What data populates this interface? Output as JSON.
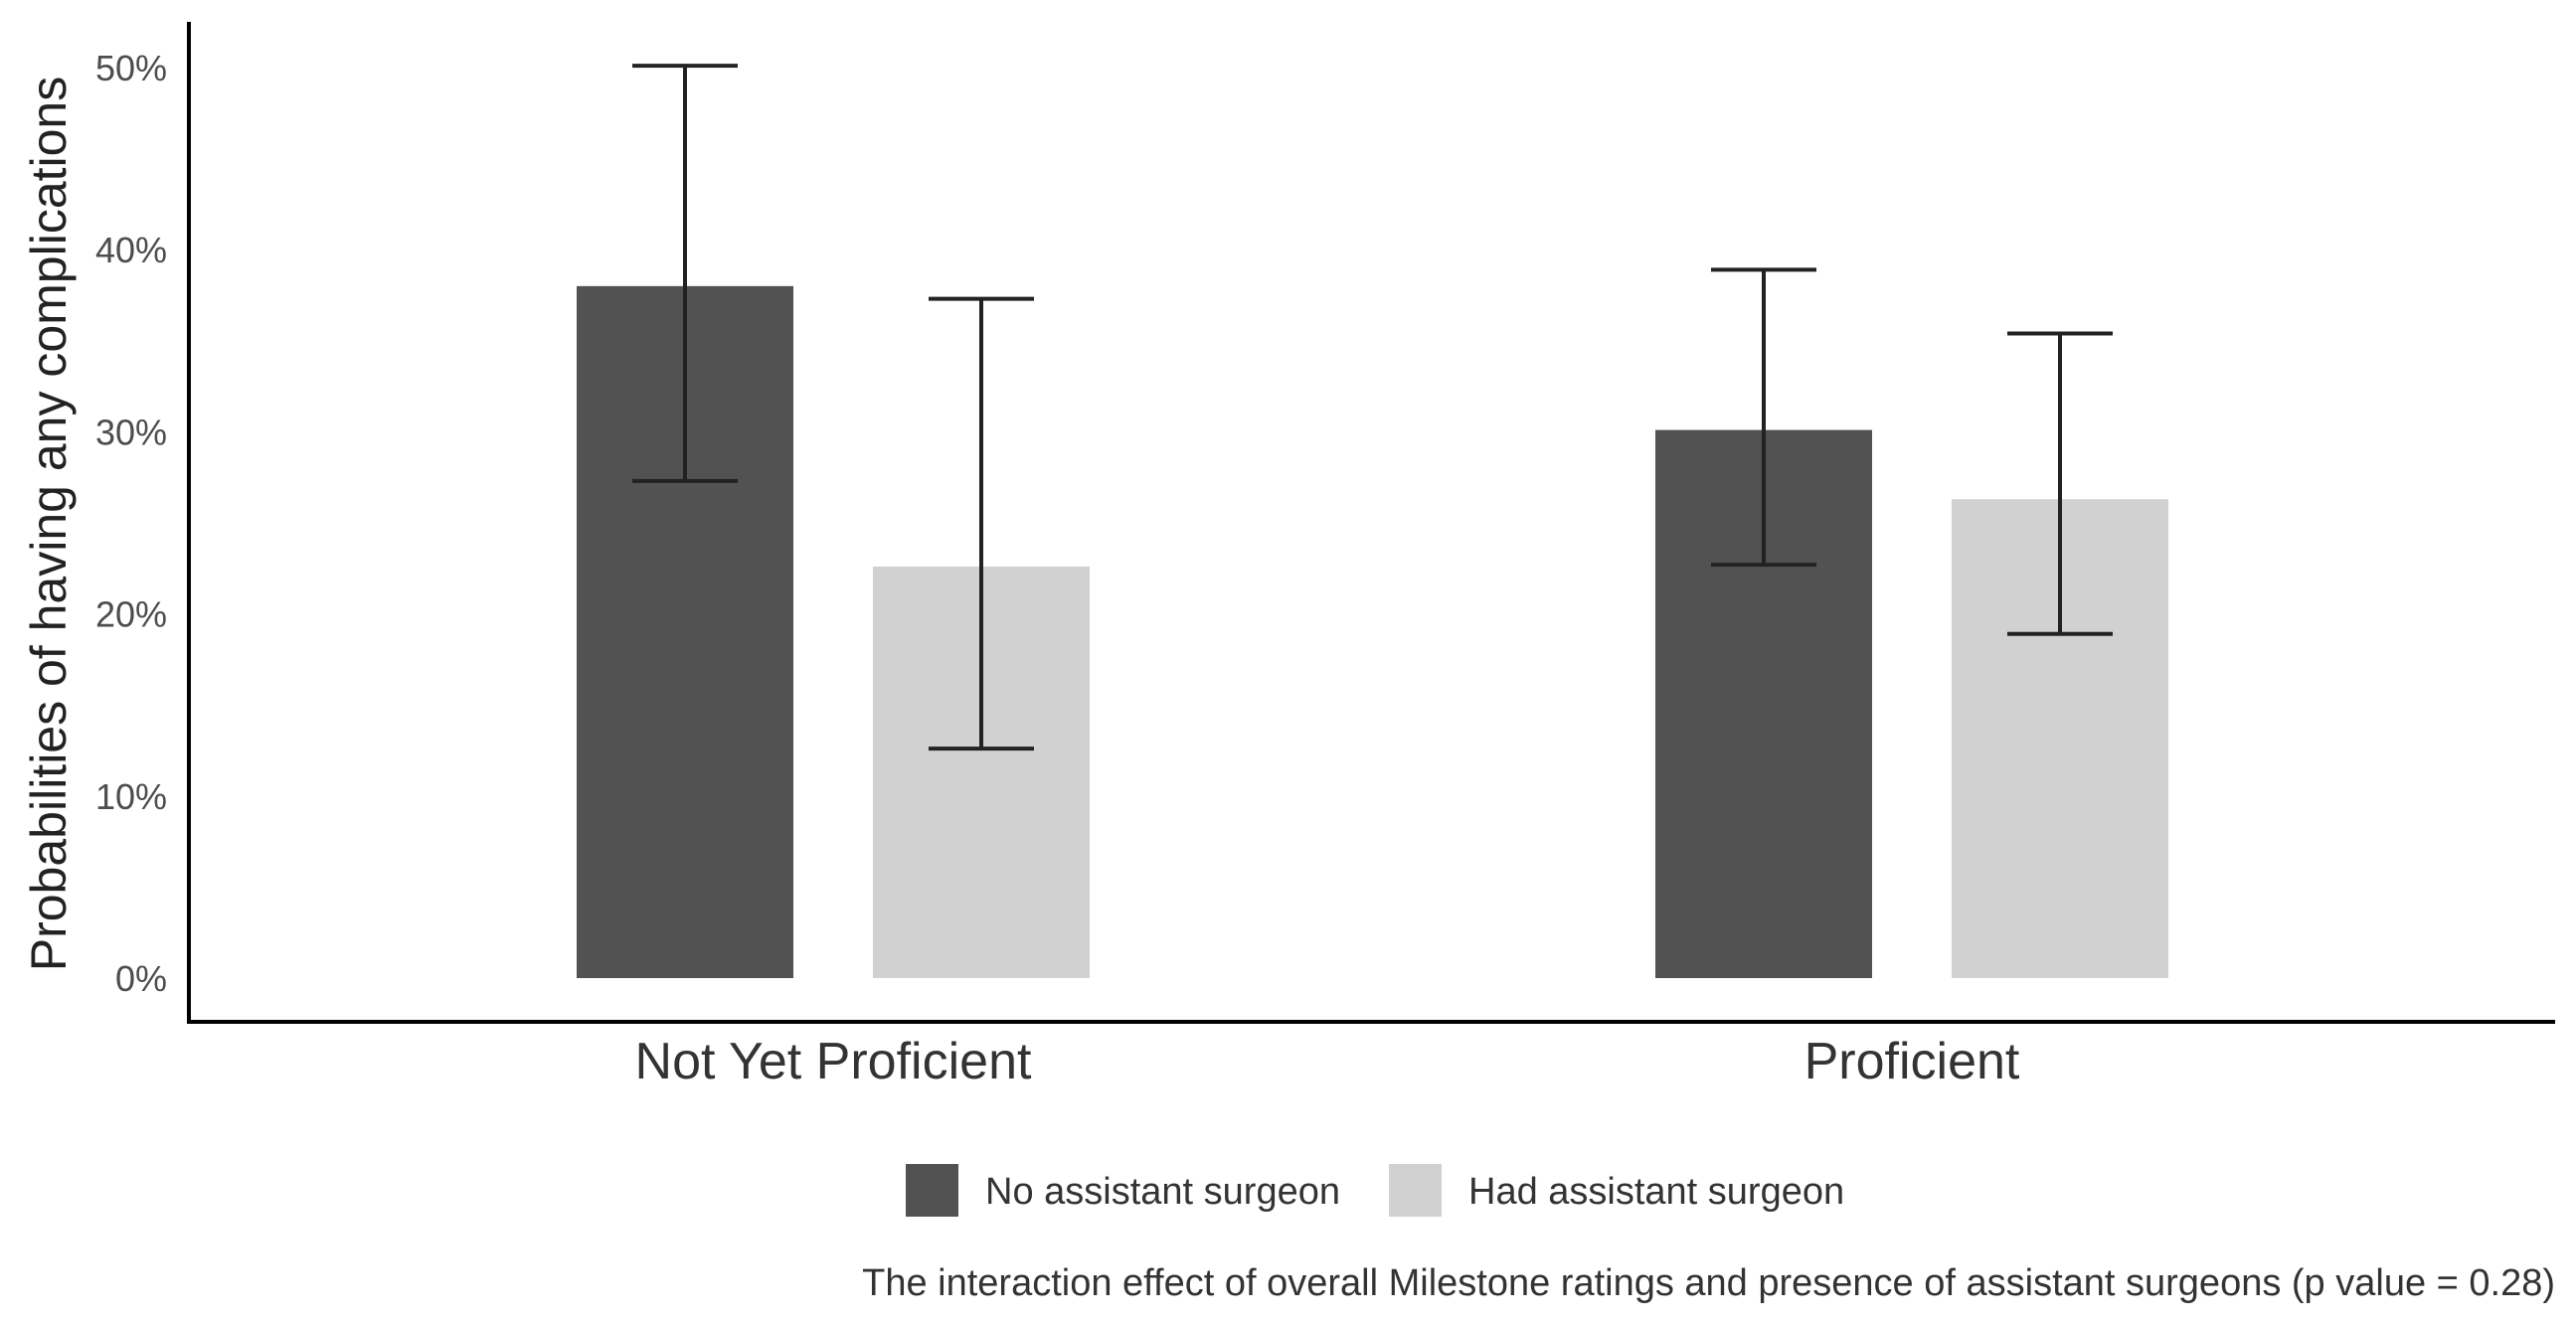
{
  "chart_data": {
    "type": "bar",
    "title": "",
    "xlabel": "",
    "ylabel": "Probabilities of having any complications",
    "ylim": [
      0,
      50
    ],
    "yticks": [
      0,
      10,
      20,
      30,
      40,
      50
    ],
    "ytick_labels": [
      "0%",
      "10%",
      "20%",
      "30%",
      "40%",
      "50%"
    ],
    "categories": [
      "Not Yet Proficient",
      "Proficient"
    ],
    "series": [
      {
        "name": "No assistant surgeon",
        "color": "#525252",
        "values": [
          38.0,
          30.1
        ],
        "ci_lower": [
          27.3,
          22.7
        ],
        "ci_upper": [
          50.1,
          38.9
        ]
      },
      {
        "name": "Had assistant surgeon",
        "color": "#d1d1d1",
        "values": [
          22.6,
          26.3
        ],
        "ci_lower": [
          12.6,
          18.9
        ],
        "ci_upper": [
          37.3,
          35.4
        ]
      }
    ],
    "legend_position": "bottom",
    "grid": false,
    "caption": "The interaction effect of overall Milestone ratings and presence of assistant surgeons (p value = 0.28)"
  }
}
